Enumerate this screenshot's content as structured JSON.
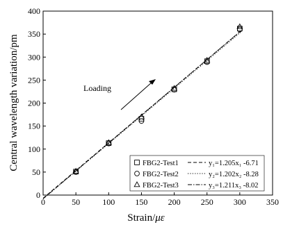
{
  "chart_data": {
    "type": "scatter",
    "xlabel_main": "Strain/",
    "xlabel_unit": "με",
    "ylabel": "Central wavelength variation/pm",
    "xlim": [
      0,
      350
    ],
    "ylim": [
      0,
      400
    ],
    "xticks": [
      0,
      50,
      100,
      150,
      200,
      250,
      300,
      350
    ],
    "yticks": [
      0,
      50,
      100,
      150,
      200,
      250,
      300,
      350,
      400
    ],
    "grid": false,
    "legend_position": "bottom-right",
    "annotation": "Loading",
    "series": [
      {
        "name": "FBG2-Test1",
        "marker": "square",
        "x": [
          50,
          100,
          150,
          200,
          250,
          300
        ],
        "y": [
          51,
          113,
          166,
          230,
          291,
          362
        ],
        "fit_label": "y₁=1.205x₁ -6.71",
        "fit": {
          "slope": 1.205,
          "intercept": -6.71
        },
        "line_style": "dashed"
      },
      {
        "name": "FBG2-Test2",
        "marker": "circle",
        "x": [
          50,
          100,
          150,
          200,
          250,
          300
        ],
        "y": [
          50,
          112,
          161,
          229,
          289,
          360
        ],
        "fit_label": "y₂=1.202x₂ -8.28",
        "fit": {
          "slope": 1.202,
          "intercept": -8.28
        },
        "line_style": "dotted"
      },
      {
        "name": "FBG2-Test3",
        "marker": "triangle",
        "x": [
          50,
          100,
          150,
          200,
          250,
          300
        ],
        "y": [
          52,
          114,
          170,
          232,
          293,
          366
        ],
        "fit_label": "y₃=1.211x₃ -8.02",
        "fit": {
          "slope": 1.211,
          "intercept": -8.02
        },
        "line_style": "dash-dot"
      }
    ]
  }
}
